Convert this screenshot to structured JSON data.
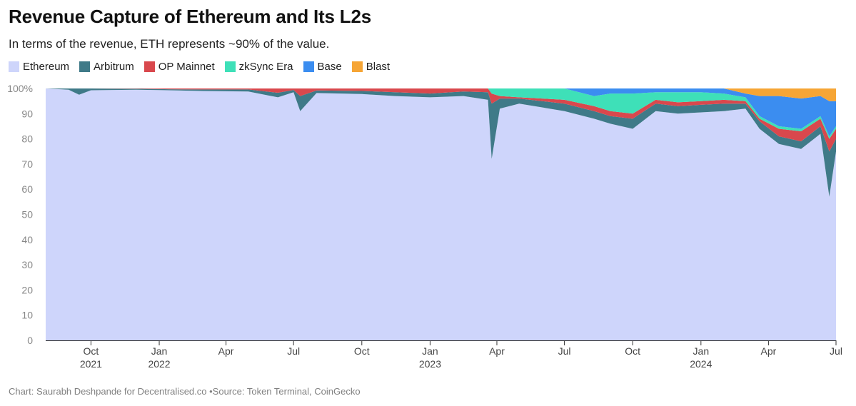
{
  "chart_data": {
    "type": "area",
    "stacked": true,
    "percent": true,
    "title": "Revenue Capture of Ethereum and Its L2s",
    "subtitle": "In terms of the revenue, ETH represents ~90% of the value.",
    "footer": {
      "credit": "Chart: Saurabh Deshpande for Decentralised.co",
      "source": "Source: Token Terminal, CoinGecko"
    },
    "ylim": [
      0,
      100
    ],
    "yticks": [
      "0",
      "10",
      "20",
      "30",
      "40",
      "50",
      "60",
      "70",
      "80",
      "90",
      "100%"
    ],
    "x_start": "2021-08-01",
    "x_end": "2024-07-01",
    "xticks": [
      {
        "date": "2021-10-01",
        "label": "Oct",
        "year": "2021"
      },
      {
        "date": "2022-01-01",
        "label": "Jan",
        "year": "2022"
      },
      {
        "date": "2022-04-01",
        "label": "Apr",
        "year": ""
      },
      {
        "date": "2022-07-01",
        "label": "Jul",
        "year": ""
      },
      {
        "date": "2022-10-01",
        "label": "Oct",
        "year": ""
      },
      {
        "date": "2023-01-01",
        "label": "Jan",
        "year": "2023"
      },
      {
        "date": "2023-04-01",
        "label": "Apr",
        "year": ""
      },
      {
        "date": "2023-07-01",
        "label": "Jul",
        "year": ""
      },
      {
        "date": "2023-10-01",
        "label": "Oct",
        "year": ""
      },
      {
        "date": "2024-01-01",
        "label": "Jan",
        "year": "2024"
      },
      {
        "date": "2024-04-01",
        "label": "Apr",
        "year": ""
      },
      {
        "date": "2024-07-01",
        "label": "Jul",
        "year": ""
      }
    ],
    "series": [
      {
        "name": "Ethereum",
        "color": "#ced5fb"
      },
      {
        "name": "Arbitrum",
        "color": "#3f7a88"
      },
      {
        "name": "OP Mainnet",
        "color": "#d9484d"
      },
      {
        "name": "zkSync Era",
        "color": "#3ee0b8"
      },
      {
        "name": "Base",
        "color": "#3b8df0"
      },
      {
        "name": "Blast",
        "color": "#f6a535"
      }
    ],
    "points": [
      {
        "date": "2021-08-01",
        "values": [
          100,
          0,
          0,
          0,
          0,
          0
        ]
      },
      {
        "date": "2021-09-01",
        "values": [
          99.5,
          0.5,
          0,
          0,
          0,
          0
        ]
      },
      {
        "date": "2021-09-15",
        "values": [
          97.5,
          2.5,
          0,
          0,
          0,
          0
        ]
      },
      {
        "date": "2021-10-01",
        "values": [
          99.3,
          0.7,
          0,
          0,
          0,
          0
        ]
      },
      {
        "date": "2021-12-01",
        "values": [
          99.5,
          0.4,
          0.1,
          0,
          0,
          0
        ]
      },
      {
        "date": "2022-01-15",
        "values": [
          99.3,
          0.4,
          0.3,
          0,
          0,
          0
        ]
      },
      {
        "date": "2022-03-01",
        "values": [
          99.0,
          0.6,
          0.4,
          0,
          0,
          0
        ]
      },
      {
        "date": "2022-05-01",
        "values": [
          98.8,
          0.8,
          0.4,
          0,
          0,
          0
        ]
      },
      {
        "date": "2022-06-10",
        "values": [
          96.5,
          1.8,
          1.7,
          0,
          0,
          0
        ]
      },
      {
        "date": "2022-07-01",
        "values": [
          98.5,
          0.9,
          0.6,
          0,
          0,
          0
        ]
      },
      {
        "date": "2022-07-10",
        "values": [
          91.0,
          6.0,
          3.0,
          0,
          0,
          0
        ]
      },
      {
        "date": "2022-08-01",
        "values": [
          98.2,
          1.0,
          0.8,
          0,
          0,
          0
        ]
      },
      {
        "date": "2022-10-01",
        "values": [
          97.8,
          1.2,
          1.0,
          0,
          0,
          0
        ]
      },
      {
        "date": "2022-11-15",
        "values": [
          97.0,
          1.5,
          1.5,
          0,
          0,
          0
        ]
      },
      {
        "date": "2023-01-01",
        "values": [
          96.5,
          1.5,
          2.0,
          0,
          0,
          0
        ]
      },
      {
        "date": "2023-02-15",
        "values": [
          97.0,
          1.8,
          1.2,
          0,
          0,
          0
        ]
      },
      {
        "date": "2023-03-20",
        "values": [
          95.5,
          3.0,
          1.5,
          0,
          0,
          0
        ]
      },
      {
        "date": "2023-03-25",
        "values": [
          72.0,
          22.0,
          4.0,
          2.0,
          0,
          0
        ]
      },
      {
        "date": "2023-04-05",
        "values": [
          92.0,
          4.0,
          1.0,
          3.0,
          0,
          0
        ]
      },
      {
        "date": "2023-05-01",
        "values": [
          94.0,
          2.0,
          0.5,
          3.5,
          0,
          0
        ]
      },
      {
        "date": "2023-06-01",
        "values": [
          92.5,
          2.5,
          1.0,
          4.0,
          0,
          0
        ]
      },
      {
        "date": "2023-07-01",
        "values": [
          91.0,
          3.0,
          1.5,
          4.5,
          0,
          0
        ]
      },
      {
        "date": "2023-08-10",
        "values": [
          88.0,
          3.0,
          2.0,
          4.0,
          3.0,
          0
        ]
      },
      {
        "date": "2023-09-01",
        "values": [
          86.0,
          3.0,
          2.0,
          7.0,
          2.0,
          0
        ]
      },
      {
        "date": "2023-10-01",
        "values": [
          84.0,
          4.0,
          2.0,
          8.0,
          2.0,
          0
        ]
      },
      {
        "date": "2023-11-01",
        "values": [
          91.0,
          3.0,
          1.5,
          3.0,
          1.5,
          0
        ]
      },
      {
        "date": "2023-12-01",
        "values": [
          90.0,
          3.0,
          1.5,
          4.0,
          1.5,
          0
        ]
      },
      {
        "date": "2024-01-01",
        "values": [
          90.5,
          3.0,
          1.5,
          3.5,
          1.5,
          0
        ]
      },
      {
        "date": "2024-02-01",
        "values": [
          91.0,
          3.0,
          1.5,
          2.5,
          2.0,
          0
        ]
      },
      {
        "date": "2024-03-01",
        "values": [
          92.0,
          2.0,
          1.0,
          1.5,
          1.5,
          2.0
        ]
      },
      {
        "date": "2024-03-20",
        "values": [
          84.0,
          3.0,
          1.0,
          1.0,
          8.0,
          3.0
        ]
      },
      {
        "date": "2024-04-15",
        "values": [
          78.0,
          3.0,
          3.0,
          1.0,
          12.0,
          3.0
        ]
      },
      {
        "date": "2024-05-15",
        "values": [
          76.0,
          3.0,
          4.0,
          1.0,
          12.0,
          4.0
        ]
      },
      {
        "date": "2024-06-10",
        "values": [
          82.0,
          3.0,
          3.0,
          1.0,
          8.0,
          3.0
        ]
      },
      {
        "date": "2024-06-22",
        "values": [
          57.0,
          18.0,
          5.0,
          1.0,
          14.0,
          5.0
        ]
      },
      {
        "date": "2024-07-01",
        "values": [
          75.0,
          5.0,
          4.0,
          1.0,
          10.0,
          5.0
        ]
      }
    ]
  }
}
